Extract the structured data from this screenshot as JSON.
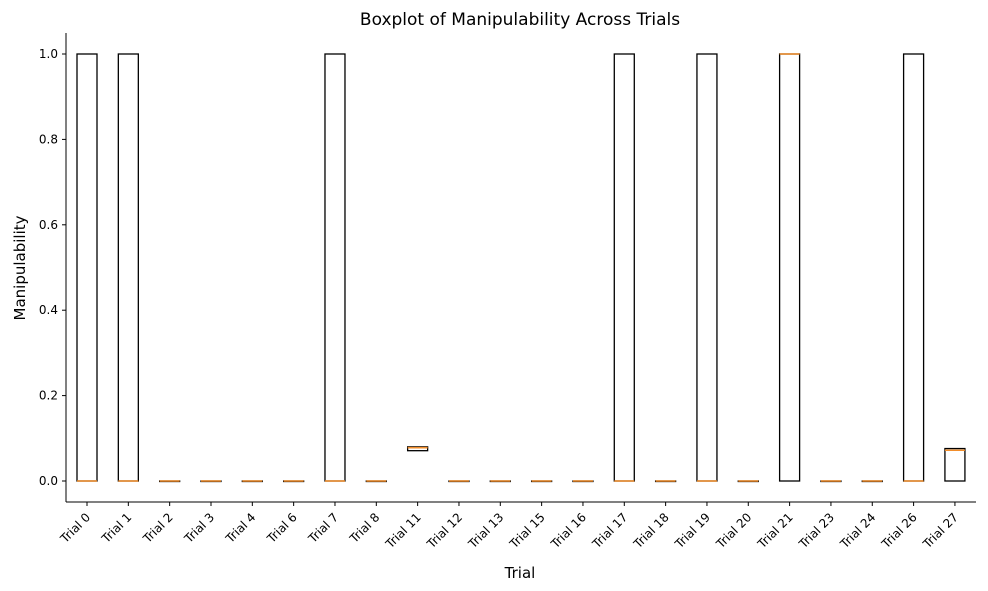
{
  "chart_data": {
    "type": "boxplot",
    "title": "Boxplot of Manipulability Across Trials",
    "xlabel": "Trial",
    "ylabel": "Manipulability",
    "ylim": [
      -0.05,
      1.05
    ],
    "y_ticks": [
      "0.0",
      "0.2",
      "0.4",
      "0.6",
      "0.8",
      "1.0"
    ],
    "y_tick_values": [
      0.0,
      0.2,
      0.4,
      0.6,
      0.8,
      1.0
    ],
    "grid": false,
    "colors": {
      "box": "#000000",
      "median": "#f28e2b",
      "axis": "#000000"
    },
    "categories": [
      "Trial 0",
      "Trial 1",
      "Trial 2",
      "Trial 3",
      "Trial 4",
      "Trial 6",
      "Trial 7",
      "Trial 8",
      "Trial 11",
      "Trial 12",
      "Trial 13",
      "Trial 15",
      "Trial 16",
      "Trial 17",
      "Trial 18",
      "Trial 19",
      "Trial 20",
      "Trial 21",
      "Trial 23",
      "Trial 24",
      "Trial 26",
      "Trial 27"
    ],
    "boxes": [
      {
        "q1": 0.0,
        "median": 0.0,
        "q3": 1.0
      },
      {
        "q1": 0.0,
        "median": 0.0,
        "q3": 1.0
      },
      {
        "q1": 0.0,
        "median": 0.0,
        "q3": 0.0
      },
      {
        "q1": 0.0,
        "median": 0.0,
        "q3": 0.0
      },
      {
        "q1": 0.0,
        "median": 0.0,
        "q3": 0.0
      },
      {
        "q1": 0.0,
        "median": 0.0,
        "q3": 0.0
      },
      {
        "q1": 0.0,
        "median": 0.0,
        "q3": 1.0
      },
      {
        "q1": 0.0,
        "median": 0.0,
        "q3": 0.0
      },
      {
        "q1": 0.071,
        "median": 0.078,
        "q3": 0.08
      },
      {
        "q1": 0.0,
        "median": 0.0,
        "q3": 0.0
      },
      {
        "q1": 0.0,
        "median": 0.0,
        "q3": 0.0
      },
      {
        "q1": 0.0,
        "median": 0.0,
        "q3": 0.0
      },
      {
        "q1": 0.0,
        "median": 0.0,
        "q3": 0.0
      },
      {
        "q1": 0.0,
        "median": 0.0,
        "q3": 1.0
      },
      {
        "q1": 0.0,
        "median": 0.0,
        "q3": 0.0
      },
      {
        "q1": 0.0,
        "median": 0.0,
        "q3": 1.0
      },
      {
        "q1": 0.0,
        "median": 0.0,
        "q3": 0.0
      },
      {
        "q1": 0.0,
        "median": 1.0,
        "q3": 1.0
      },
      {
        "q1": 0.0,
        "median": 0.0,
        "q3": 0.0
      },
      {
        "q1": 0.0,
        "median": 0.0,
        "q3": 0.0
      },
      {
        "q1": 0.0,
        "median": 0.0,
        "q3": 1.0
      },
      {
        "q1": 0.0,
        "median": 0.072,
        "q3": 0.076
      }
    ]
  }
}
